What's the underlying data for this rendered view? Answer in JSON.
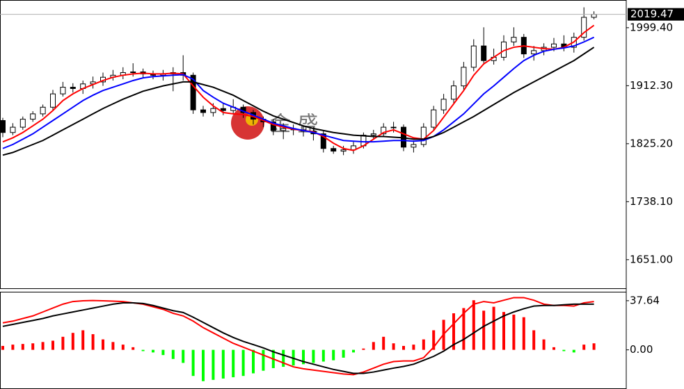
{
  "chart_data": [
    {
      "type": "candlestick",
      "open": [
        1860,
        1842,
        1850,
        1862,
        1870,
        1880,
        1900,
        1910,
        1908,
        1915,
        1918,
        1925,
        1928,
        1932,
        1933,
        1930,
        1928,
        1930,
        1932,
        1928,
        1876,
        1872,
        1878,
        1875,
        1880,
        1872,
        1862,
        1858,
        1845,
        1848,
        1846,
        1844,
        1840,
        1818,
        1814,
        1816,
        1822,
        1838,
        1840,
        1850,
        1850,
        1820,
        1824,
        1850,
        1876,
        1892,
        1912,
        1940,
        1972,
        1950,
        1955,
        1978,
        1985,
        1960,
        1965,
        1970,
        1975,
        1970,
        1985,
        2015
      ],
      "high": [
        1864,
        1856,
        1866,
        1874,
        1884,
        1906,
        1918,
        1916,
        1920,
        1926,
        1932,
        1936,
        1940,
        1946,
        1938,
        1935,
        1936,
        1940,
        1958,
        1932,
        1882,
        1886,
        1885,
        1892,
        1884,
        1876,
        1866,
        1862,
        1856,
        1854,
        1852,
        1850,
        1844,
        1822,
        1822,
        1828,
        1842,
        1846,
        1856,
        1858,
        1854,
        1830,
        1856,
        1882,
        1900,
        1920,
        1948,
        1982,
        2000,
        1968,
        1988,
        2000,
        1990,
        1972,
        1976,
        1984,
        1988,
        1992,
        2030,
        2024
      ],
      "low": [
        1835,
        1838,
        1846,
        1858,
        1866,
        1876,
        1896,
        1902,
        1900,
        1908,
        1912,
        1920,
        1922,
        1926,
        1924,
        1922,
        1920,
        1904,
        1920,
        1870,
        1866,
        1866,
        1868,
        1870,
        1864,
        1854,
        1850,
        1838,
        1832,
        1838,
        1836,
        1830,
        1812,
        1810,
        1808,
        1810,
        1818,
        1832,
        1836,
        1842,
        1814,
        1812,
        1820,
        1846,
        1870,
        1886,
        1906,
        1934,
        1944,
        1944,
        1950,
        1972,
        1954,
        1950,
        1958,
        1964,
        1964,
        1962,
        1980,
        2012
      ],
      "close": [
        1842,
        1850,
        1862,
        1870,
        1880,
        1900,
        1910,
        1908,
        1915,
        1918,
        1925,
        1928,
        1932,
        1933,
        1930,
        1928,
        1930,
        1932,
        1928,
        1876,
        1872,
        1878,
        1875,
        1880,
        1872,
        1862,
        1858,
        1845,
        1848,
        1846,
        1844,
        1840,
        1818,
        1814,
        1816,
        1822,
        1838,
        1840,
        1850,
        1850,
        1820,
        1824,
        1850,
        1876,
        1892,
        1912,
        1940,
        1972,
        1950,
        1955,
        1978,
        1985,
        1960,
        1965,
        1970,
        1975,
        1970,
        1985,
        2015,
        2019.47
      ],
      "series": [
        {
          "color": "#ff0000",
          "values": [
            1828,
            1834,
            1842,
            1852,
            1862,
            1875,
            1890,
            1900,
            1908,
            1914,
            1920,
            1925,
            1928,
            1930,
            1931,
            1930,
            1930,
            1931,
            1930,
            1912,
            1895,
            1882,
            1872,
            1870,
            1869,
            1866,
            1860,
            1854,
            1850,
            1847,
            1845,
            1843,
            1836,
            1826,
            1818,
            1815,
            1822,
            1832,
            1842,
            1846,
            1840,
            1834,
            1832,
            1845,
            1865,
            1885,
            1905,
            1928,
            1945,
            1955,
            1965,
            1970,
            1972,
            1970,
            1968,
            1967,
            1970,
            1978,
            1992,
            2003
          ]
        },
        {
          "color": "#0000ff",
          "values": [
            1818,
            1824,
            1832,
            1840,
            1850,
            1860,
            1870,
            1880,
            1890,
            1898,
            1905,
            1910,
            1915,
            1920,
            1924,
            1926,
            1927,
            1928,
            1929,
            1922,
            1905,
            1895,
            1886,
            1880,
            1874,
            1868,
            1862,
            1856,
            1852,
            1848,
            1845,
            1842,
            1838,
            1834,
            1830,
            1829,
            1828,
            1828,
            1829,
            1830,
            1830,
            1829,
            1830,
            1836,
            1846,
            1858,
            1870,
            1885,
            1900,
            1912,
            1925,
            1938,
            1950,
            1958,
            1964,
            1967,
            1969,
            1972,
            1978,
            1985
          ]
        },
        {
          "color": "#000000",
          "values": [
            1808,
            1812,
            1818,
            1824,
            1830,
            1838,
            1846,
            1854,
            1862,
            1870,
            1878,
            1885,
            1892,
            1898,
            1904,
            1908,
            1912,
            1915,
            1918,
            1918,
            1914,
            1910,
            1904,
            1898,
            1890,
            1882,
            1874,
            1867,
            1862,
            1857,
            1852,
            1848,
            1845,
            1842,
            1840,
            1838,
            1837,
            1836,
            1836,
            1835,
            1834,
            1832,
            1832,
            1836,
            1842,
            1850,
            1858,
            1866,
            1875,
            1884,
            1893,
            1902,
            1910,
            1918,
            1926,
            1934,
            1942,
            1950,
            1960,
            1970
          ]
        }
      ],
      "last_price": 2019.47,
      "ylim": [
        1607,
        2041
      ],
      "yticks": [
        {
          "value": 1651,
          "label": "1651.00"
        },
        {
          "value": 1738.1,
          "label": "1738.10"
        },
        {
          "value": 1825.2,
          "label": "1825.20"
        },
        {
          "value": 1912.3,
          "label": "1912.30"
        },
        {
          "value": 1999.4,
          "label": "1999.40"
        }
      ],
      "watermark": "金 盛"
    },
    {
      "type": "macd",
      "histogram": {
        "up_color": "#ff0000",
        "down_color": "#00ff00",
        "values": [
          3,
          4,
          4.5,
          5,
          6,
          7,
          10,
          13,
          15,
          12,
          8,
          6,
          4,
          2,
          -1,
          -2,
          -4,
          -7,
          -10,
          -20,
          -24,
          -23,
          -22,
          -21,
          -20,
          -18,
          -16,
          -14,
          -13,
          -12,
          -11,
          -10,
          -9,
          -8,
          -6,
          -2,
          1,
          6,
          10,
          5,
          3,
          4,
          8,
          15,
          23,
          28,
          32,
          38,
          30,
          33,
          29,
          27,
          25,
          15,
          8,
          2,
          -1,
          -2,
          4,
          5
        ]
      },
      "series": [
        {
          "color": "#ff0000",
          "values": [
            20.7,
            22,
            24,
            26,
            29,
            32,
            35,
            37,
            37.6,
            37.8,
            37.6,
            37.3,
            37,
            36,
            35,
            33,
            31,
            28,
            26,
            22,
            17,
            13,
            9,
            5,
            2,
            -1,
            -4,
            -7,
            -10,
            -13,
            -14.5,
            -15.5,
            -16.5,
            -17.5,
            -18.5,
            -19,
            -17,
            -14,
            -11,
            -9,
            -8.5,
            -8.5,
            -6,
            2,
            12,
            20,
            28,
            35,
            37,
            36,
            38,
            40,
            40,
            38,
            35,
            34,
            34,
            33.5,
            36,
            37
          ]
        },
        {
          "color": "#000000",
          "values": [
            18,
            19.5,
            21,
            22.5,
            24,
            26,
            27.5,
            29,
            30.5,
            32,
            33.5,
            35,
            36,
            36,
            35.5,
            34,
            32,
            30,
            28.6,
            25,
            21,
            17,
            13,
            9.5,
            6.5,
            4,
            1.5,
            -1.5,
            -4,
            -6.5,
            -9,
            -11,
            -13,
            -15,
            -16.5,
            -18,
            -18,
            -17,
            -15.5,
            -14,
            -12.7,
            -11,
            -8,
            -5,
            -1,
            4,
            8,
            13,
            18,
            22,
            26,
            29,
            31.5,
            33.5,
            34,
            34,
            34.5,
            35,
            35,
            35
          ]
        }
      ],
      "ylim": [
        -30,
        44.5
      ],
      "yticks": [
        {
          "value": 0,
          "label": "0.00"
        },
        37.64
      ]
    }
  ]
}
